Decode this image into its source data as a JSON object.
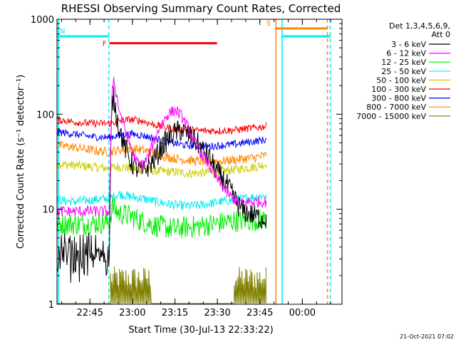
{
  "chart_data": {
    "type": "line",
    "title": "RHESSI Observing Summary Count Rates, Corrected",
    "xlabel": "Start Time (30-Jul-13 22:33:22)",
    "ylabel": "Corrected Count Rate (s⁻¹ detector⁻¹)",
    "y_scale": "log",
    "ylim": [
      1,
      1000
    ],
    "xlim": [
      "22:33:22",
      "00:14:00"
    ],
    "x_tick_labels": [
      "22:45",
      "23:00",
      "23:15",
      "23:30",
      "23:45",
      "00:00"
    ],
    "x_tick_minutes": [
      11.63,
      26.63,
      41.63,
      56.63,
      71.63,
      86.63
    ],
    "y_tick_labels": [
      "1",
      "10",
      "100",
      "1000"
    ],
    "y_tick_values": [
      1,
      10,
      100,
      1000
    ],
    "footer_date": "21-Oct-2021 07:02",
    "legend_header": [
      "Det 1,3,4,5,6,9,",
      "Att 0"
    ],
    "series": [
      {
        "name": "3 - 6 keV",
        "color": "#000000",
        "x": [
          0,
          18.5,
          19,
          19.5,
          20,
          21,
          22,
          24,
          26,
          28,
          30,
          32,
          34,
          36,
          38,
          40,
          42,
          44,
          46,
          48,
          50,
          52,
          54,
          56,
          58,
          60,
          62,
          64,
          66,
          68,
          70,
          72,
          74
        ],
        "y": [
          3.2,
          3.2,
          45,
          130,
          150,
          100,
          70,
          45,
          32,
          27,
          25,
          28,
          32,
          40,
          50,
          58,
          65,
          68,
          62,
          55,
          48,
          40,
          34,
          26,
          22,
          18,
          14,
          11,
          9.5,
          9,
          8.5,
          8,
          8
        ]
      },
      {
        "name": "6 - 12 keV",
        "color": "#ff00ff",
        "x": [
          0,
          18.5,
          19,
          19.5,
          20,
          21,
          22,
          24,
          26,
          28,
          30,
          32,
          34,
          36,
          38,
          40,
          42,
          44,
          46,
          48,
          50,
          52,
          54,
          56,
          58,
          60,
          62,
          64,
          66,
          68,
          70,
          72,
          74
        ],
        "y": [
          9.5,
          9.5,
          60,
          170,
          240,
          160,
          110,
          70,
          45,
          32,
          28,
          35,
          50,
          70,
          90,
          105,
          110,
          95,
          75,
          55,
          42,
          35,
          28,
          22,
          18,
          15,
          13,
          12,
          11.5,
          12,
          12,
          12,
          12
        ]
      },
      {
        "name": "12 - 25 keV",
        "color": "#00ee00",
        "x": [
          0,
          10,
          18.5,
          19.5,
          22,
          26,
          30,
          34,
          38,
          42,
          46,
          50,
          54,
          58,
          62,
          66,
          70,
          74
        ],
        "y": [
          7,
          7,
          7.3,
          10.5,
          9,
          8.5,
          7.5,
          6.8,
          6.5,
          6.2,
          6.5,
          6.6,
          6.9,
          7.2,
          7.5,
          7.6,
          7.7,
          7.8
        ]
      },
      {
        "name": "25 - 50 keV",
        "color": "#00eeee",
        "x": [
          0,
          6,
          12,
          18.5,
          22,
          26,
          30,
          34,
          38,
          42,
          46,
          50,
          54,
          58,
          62,
          66,
          70,
          74
        ],
        "y": [
          12.5,
          12,
          12.5,
          13,
          14.5,
          13.5,
          13,
          12.2,
          11.5,
          11,
          10.8,
          11,
          11.5,
          12,
          12.5,
          13,
          13.5,
          14
        ]
      },
      {
        "name": "50 - 100 keV",
        "color": "#cccc00",
        "x": [
          0,
          6,
          12,
          18,
          22,
          26,
          30,
          34,
          38,
          42,
          46,
          50,
          54,
          58,
          62,
          66,
          70,
          74
        ],
        "y": [
          30,
          29,
          28,
          27,
          28,
          27,
          26,
          25.5,
          25,
          24.5,
          24,
          24,
          24.5,
          25,
          26,
          27,
          28,
          30
        ]
      },
      {
        "name": "100 - 300 keV",
        "color": "#ff0000",
        "x": [
          0,
          6,
          12,
          18,
          22,
          26,
          30,
          34,
          38,
          42,
          46,
          50,
          54,
          58,
          62,
          66,
          70,
          74
        ],
        "y": [
          88,
          83,
          80,
          80,
          85,
          88,
          85,
          78,
          73,
          70,
          68,
          67,
          67,
          67,
          68,
          70,
          72,
          75
        ]
      },
      {
        "name": "300 - 800 keV",
        "color": "#0000ff",
        "x": [
          0,
          6,
          12,
          18,
          22,
          26,
          30,
          34,
          38,
          42,
          46,
          50,
          54,
          58,
          62,
          66,
          70,
          74
        ],
        "y": [
          65,
          62,
          58,
          57,
          60,
          62,
          60,
          56,
          52,
          49,
          47,
          46,
          46,
          47,
          48,
          50,
          52,
          54
        ]
      },
      {
        "name": "800 - 7000 keV",
        "color": "#ff8800",
        "x": [
          0,
          6,
          12,
          18,
          22,
          26,
          30,
          34,
          38,
          42,
          46,
          50,
          54,
          58,
          62,
          66,
          70,
          74
        ],
        "y": [
          47,
          45,
          42,
          40,
          42,
          44,
          42,
          39,
          36,
          34,
          33,
          32,
          32,
          32,
          33,
          34,
          35,
          37
        ]
      },
      {
        "name": "7000 - 15000 keV",
        "color": "#808000",
        "x": [
          0,
          18.5,
          18.6,
          33,
          33.1,
          62.5,
          62.6,
          74
        ],
        "y": [
          1.02,
          1.02,
          2.5,
          2.5,
          1.02,
          1.02,
          2.5,
          2.5
        ]
      }
    ],
    "flag_bars": [
      {
        "label": "F",
        "color": "#ff0000",
        "x_start": 18.5,
        "x_end": 56.5,
        "level": 560
      },
      {
        "label": "N",
        "color": "#00eeee",
        "x_start": 0,
        "x_end": 18.3,
        "level": 660
      },
      {
        "label": "N",
        "color": "#00eeee",
        "x_start": 79.5,
        "x_end": 96.5,
        "level": 660
      },
      {
        "label": "S",
        "color": "#ff8800",
        "x_start": 77,
        "x_end": 95.5,
        "level": 800
      }
    ],
    "vertical_markers": [
      {
        "color": "#00eeee",
        "x": 0.5,
        "style": "solid"
      },
      {
        "color": "#00eeee",
        "x": 18.3,
        "style": "dashed"
      },
      {
        "color": "#ff8800",
        "x": 77.3,
        "style": "solid"
      },
      {
        "color": "#00eeee",
        "x": 79.5,
        "style": "solid"
      },
      {
        "color": "#ff8800",
        "x": 95.5,
        "style": "dashed"
      },
      {
        "color": "#00eeee",
        "x": 96.5,
        "style": "dashed"
      }
    ]
  }
}
